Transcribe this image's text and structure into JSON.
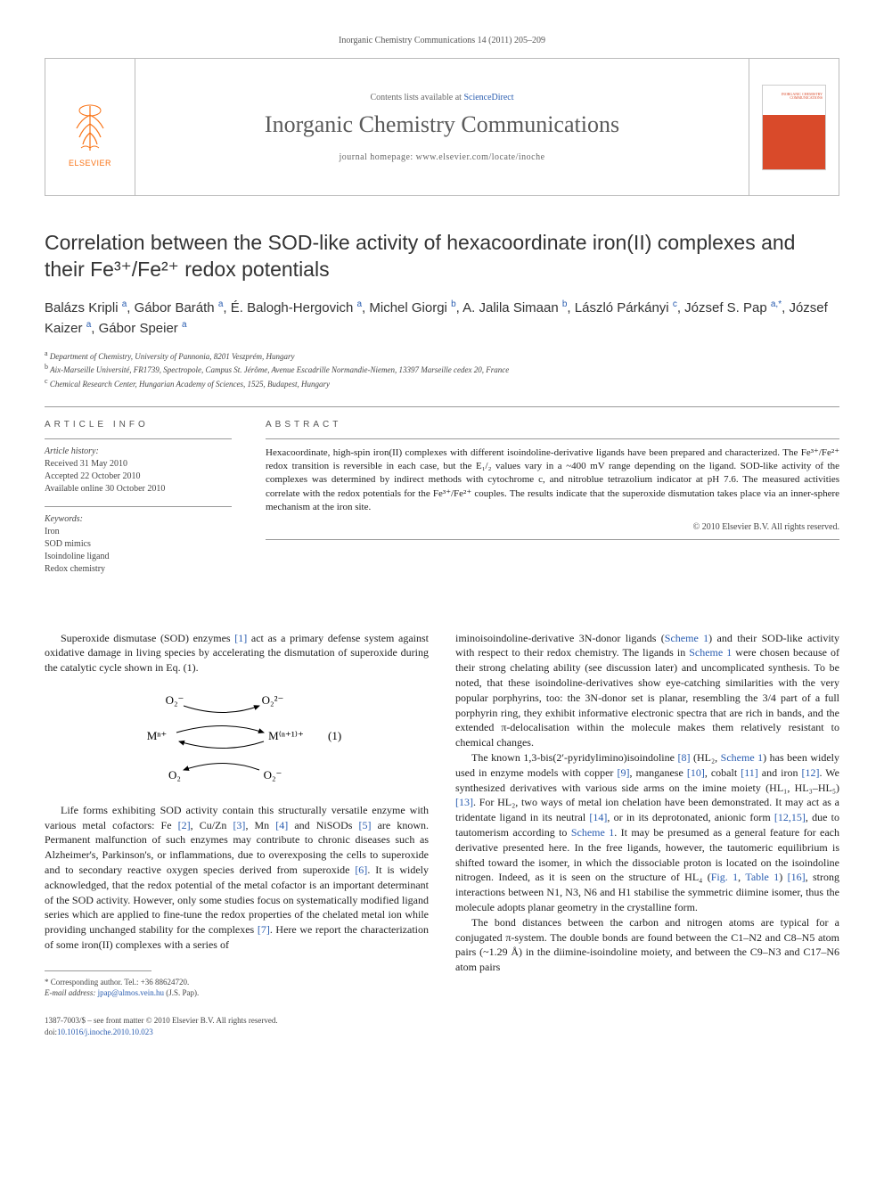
{
  "citation": "Inorganic Chemistry Communications 14 (2011) 205–209",
  "header": {
    "publisher": "ELSEVIER",
    "contents_prefix": "Contents lists available at ",
    "contents_link": "ScienceDirect",
    "journal": "Inorganic Chemistry Communications",
    "homepage_prefix": "journal homepage: ",
    "homepage_url": "www.elsevier.com/locate/inoche",
    "cover_title": "INORGANIC CHEMISTRY COMMUNICATIONS"
  },
  "title": "Correlation between the SOD-like activity of hexacoordinate iron(II) complexes and their Fe³⁺/Fe²⁺ redox potentials",
  "authors_html": "Balázs Kripli <sup>a</sup>, Gábor Baráth <sup>a</sup>, É. Balogh-Hergovich <sup>a</sup>, Michel Giorgi <sup>b</sup>, A. Jalila Simaan <sup>b</sup>, László Párkányi <sup>c</sup>, József S. Pap <sup>a,*</sup>, József Kaizer <sup>a</sup>, Gábor Speier <sup>a</sup>",
  "affiliations": [
    {
      "key": "a",
      "text": "Department of Chemistry, University of Pannonia, 8201 Veszprém, Hungary"
    },
    {
      "key": "b",
      "text": "Aix-Marseille Université, FR1739, Spectropole, Campus St. Jérôme, Avenue Escadrille Normandie-Niemen, 13397 Marseille cedex 20, France"
    },
    {
      "key": "c",
      "text": "Chemical Research Center, Hungarian Academy of Sciences, 1525, Budapest, Hungary"
    }
  ],
  "article_info": {
    "head": "ARTICLE INFO",
    "history_label": "Article history:",
    "history": [
      "Received 31 May 2010",
      "Accepted 22 October 2010",
      "Available online 30 October 2010"
    ],
    "keywords_label": "Keywords:",
    "keywords": [
      "Iron",
      "SOD mimics",
      "Isoindoline ligand",
      "Redox chemistry"
    ]
  },
  "abstract": {
    "head": "ABSTRACT",
    "text": "Hexacoordinate, high-spin iron(II) complexes with different isoindoline-derivative ligands have been prepared and characterized. The Fe³⁺/Fe²⁺ redox transition is reversible in each case, but the E₁/₂ values vary in a ~400 mV range depending on the ligand. SOD-like activity of the complexes was determined by indirect methods with cytochrome c, and nitroblue tetrazolium indicator at pH 7.6. The measured activities correlate with the redox potentials for the Fe³⁺/Fe²⁺ couples. The results indicate that the superoxide dismutation takes place via an inner-sphere mechanism at the iron site.",
    "copyright": "© 2010 Elsevier B.V. All rights reserved."
  },
  "equation": {
    "number": "(1)",
    "labels": {
      "tl": "O₂⁻",
      "tr": "O₂²⁻",
      "ml": "Mⁿ⁺",
      "mr": "M⁽ⁿ⁺¹⁾⁺",
      "bl": "O₂",
      "br": "O₂⁻"
    }
  },
  "body": {
    "p1": "Superoxide dismutase (SOD) enzymes [1] act as a primary defense system against oxidative damage in living species by accelerating the dismutation of superoxide during the catalytic cycle shown in Eq. (1).",
    "p2": "Life forms exhibiting SOD activity contain this structurally versatile enzyme with various metal cofactors: Fe [2], Cu/Zn [3], Mn [4] and NiSODs [5] are known. Permanent malfunction of such enzymes may contribute to chronic diseases such as Alzheimer's, Parkinson's, or inflammations, due to overexposing the cells to superoxide and to secondary reactive oxygen species derived from superoxide [6]. It is widely acknowledged, that the redox potential of the metal cofactor is an important determinant of the SOD activity. However, only some studies focus on systematically modified ligand series which are applied to fine-tune the redox properties of the chelated metal ion while providing unchanged stability for the complexes [7]. Here we report the characterization of some iron(II) complexes with a series of",
    "p3a": "iminoisoindoline-derivative 3N-donor ligands (",
    "p3b": ") and their SOD-like activity with respect to their redox chemistry. The ligands in ",
    "p3c": " were chosen because of their strong chelating ability (see discussion later) and uncomplicated synthesis. To be noted, that these isoindoline-derivatives show eye-catching similarities with the very popular porphyrins, too: the 3N-donor set is planar, resembling the 3/4 part of a full porphyrin ring, they exhibit informative electronic spectra that are rich in bands, and the extended π-delocalisation within the molecule makes them relatively resistant to chemical changes.",
    "p4": "The known 1,3-bis(2′-pyridylimino)isoindoline [8] (HL₂, Scheme 1) has been widely used in enzyme models with copper [9], manganese [10], cobalt [11] and iron [12]. We synthesized derivatives with various side arms on the imine moiety (HL₁, HL₃–HL₅) [13]. For HL₂, two ways of metal ion chelation have been demonstrated. It may act as a tridentate ligand in its neutral [14], or in its deprotonated, anionic form [12,15], due to tautomerism according to Scheme 1. It may be presumed as a general feature for each derivative presented here. In the free ligands, however, the tautomeric equilibrium is shifted toward the isomer, in which the dissociable proton is located on the isoindoline nitrogen. Indeed, as it is seen on the structure of HL₄ (Fig. 1, Table 1) [16], strong interactions between N1, N3, N6 and H1 stabilise the symmetric diimine isomer, thus the molecule adopts planar geometry in the crystalline form.",
    "p5": "The bond distances between the carbon and nitrogen atoms are typical for a conjugated π-system. The double bonds are found between the C1–N2 and C8–N5 atom pairs (~1.29 Å) in the diimine-isoindoline moiety, and between the C9–N3 and C17–N6 atom pairs"
  },
  "footnotes": {
    "corr_label": "* Corresponding author. Tel.: +36 88624720.",
    "email_label": "E-mail address:",
    "email": "jpap@almos.vein.hu",
    "email_owner": "(J.S. Pap)."
  },
  "footer": {
    "line1": "1387-7003/$ – see front matter © 2010 Elsevier B.V. All rights reserved.",
    "doi_prefix": "doi:",
    "doi": "10.1016/j.inoche.2010.10.023"
  },
  "refs": {
    "scheme1": "Scheme 1"
  }
}
